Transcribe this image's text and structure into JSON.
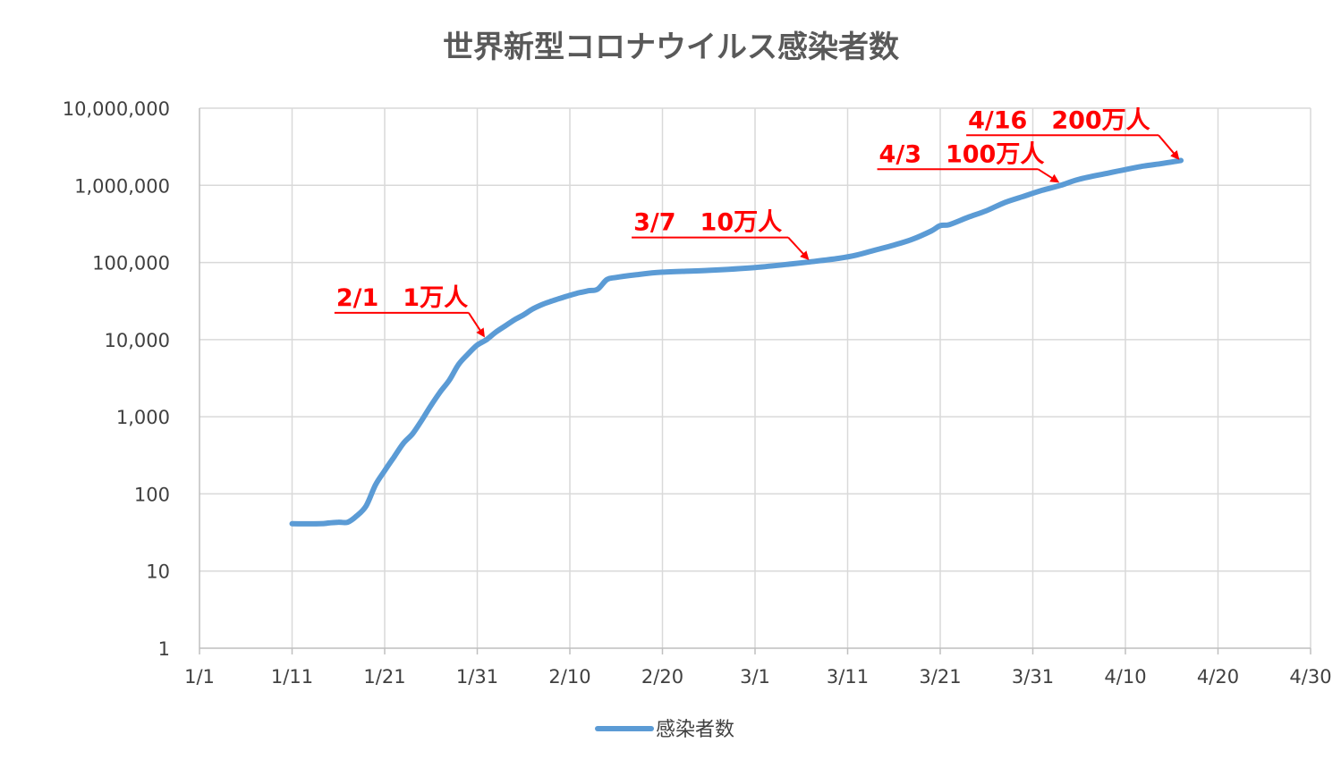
{
  "chart_data": {
    "type": "line",
    "title": "世界新型コロナウイルス感染者数",
    "xlabel": "",
    "ylabel": "",
    "y_scale": "log",
    "ylim": [
      1,
      10000000
    ],
    "y_ticks": [
      1,
      10,
      100,
      1000,
      10000,
      100000,
      1000000,
      10000000
    ],
    "y_tick_labels": [
      "1",
      "10",
      "100",
      "1,000",
      "10,000",
      "100,000",
      "1,000,000",
      "10,000,000"
    ],
    "xlim": [
      "1/1",
      "4/30"
    ],
    "x_ticks": [
      "1/1",
      "1/11",
      "1/21",
      "1/31",
      "2/10",
      "2/20",
      "3/1",
      "3/11",
      "3/21",
      "3/31",
      "4/10",
      "4/20",
      "4/30"
    ],
    "grid": true,
    "legend": "bottom",
    "series": [
      {
        "name": "感染者数",
        "color": "#5b9bd5",
        "points": [
          [
            "1/11",
            41
          ],
          [
            "1/14",
            41
          ],
          [
            "1/15",
            42
          ],
          [
            "1/16",
            43
          ],
          [
            "1/17",
            43
          ],
          [
            "1/18",
            52
          ],
          [
            "1/19",
            70
          ],
          [
            "1/20",
            130
          ],
          [
            "1/21",
            200
          ],
          [
            "1/22",
            300
          ],
          [
            "1/23",
            450
          ],
          [
            "1/24",
            600
          ],
          [
            "1/25",
            900
          ],
          [
            "1/26",
            1400
          ],
          [
            "1/27",
            2100
          ],
          [
            "1/28",
            3000
          ],
          [
            "1/29",
            4800
          ],
          [
            "1/30",
            6500
          ],
          [
            "1/31",
            8500
          ],
          [
            "2/1",
            10000
          ],
          [
            "2/2",
            12500
          ],
          [
            "2/3",
            15000
          ],
          [
            "2/4",
            18000
          ],
          [
            "2/5",
            21000
          ],
          [
            "2/6",
            25000
          ],
          [
            "2/7",
            28500
          ],
          [
            "2/8",
            31500
          ],
          [
            "2/9",
            34500
          ],
          [
            "2/10",
            37500
          ],
          [
            "2/11",
            40500
          ],
          [
            "2/12",
            43000
          ],
          [
            "2/13",
            45000
          ],
          [
            "2/14",
            60000
          ],
          [
            "2/15",
            64000
          ],
          [
            "2/17",
            69000
          ],
          [
            "2/20",
            75000
          ],
          [
            "2/25",
            79000
          ],
          [
            "3/1",
            86000
          ],
          [
            "3/5",
            96000
          ],
          [
            "3/7",
            102000
          ],
          [
            "3/10",
            113000
          ],
          [
            "3/12",
            125000
          ],
          [
            "3/14",
            145000
          ],
          [
            "3/16",
            168000
          ],
          [
            "3/18",
            200000
          ],
          [
            "3/20",
            255000
          ],
          [
            "3/21",
            300000
          ],
          [
            "3/22",
            310000
          ],
          [
            "3/24",
            385000
          ],
          [
            "3/26",
            470000
          ],
          [
            "3/28",
            600000
          ],
          [
            "3/30",
            720000
          ],
          [
            "4/1",
            860000
          ],
          [
            "4/3",
            1000000
          ],
          [
            "4/5",
            1200000
          ],
          [
            "4/8",
            1430000
          ],
          [
            "4/10",
            1600000
          ],
          [
            "4/12",
            1780000
          ],
          [
            "4/14",
            1920000
          ],
          [
            "4/16",
            2100000
          ]
        ]
      }
    ],
    "annotations": [
      {
        "text": "2/1　1万人",
        "date": "2/1",
        "value": 10000
      },
      {
        "text": "3/7　10万人",
        "date": "3/7",
        "value": 100000
      },
      {
        "text": "4/3　100万人",
        "date": "4/3",
        "value": 1000000
      },
      {
        "text": "4/16　200万人",
        "date": "4/16",
        "value": 2000000
      }
    ],
    "annotation_color": "#ff0000"
  }
}
